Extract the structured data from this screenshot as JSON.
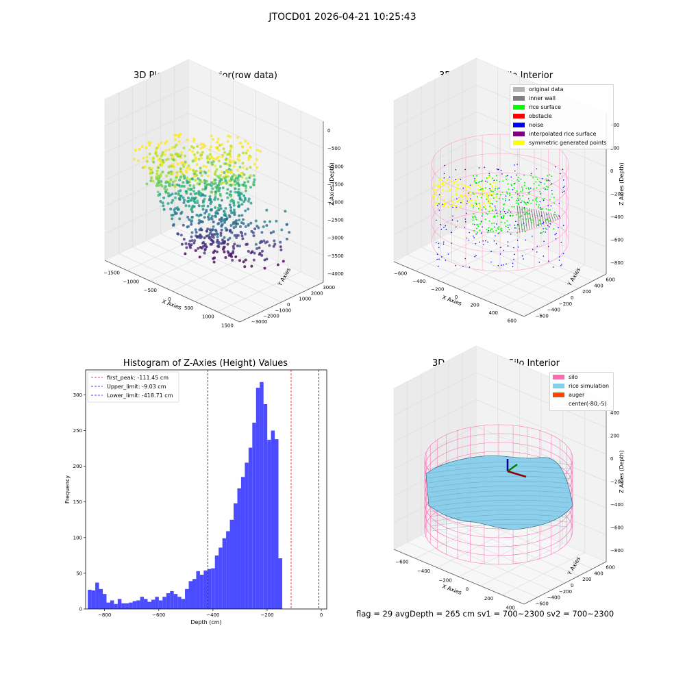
{
  "figure": {
    "suptitle": "JTOCD01 2026-04-21 10:25:43",
    "footer": "flag = 29  avgDepth = 265 cm  sv1 = 700~2300  sv2 = 700~2300"
  },
  "panel1": {
    "title": "3D Plot of Silo Interior(row data)",
    "xlabel": "X Axies",
    "ylabel": "Y Axies",
    "zlabel": "Z Axies (Depth)",
    "xticks": [
      "−1500",
      "−1000",
      "−500",
      "0",
      "500",
      "1000",
      "1500"
    ],
    "yticks": [
      "−3000",
      "−2000",
      "−1000",
      "0",
      "1000",
      "2000",
      "3000"
    ],
    "zticks": [
      "0",
      "−500",
      "−1000",
      "−1500",
      "−2000",
      "−2500",
      "−3000",
      "−3500",
      "−4000"
    ]
  },
  "panel2": {
    "title": "3D classify of Silo Interior",
    "xlabel": "X Axies",
    "ylabel": "Y Axies",
    "zlabel": "Z Axies (Depth)",
    "xticks": [
      "−600",
      "−400",
      "−200",
      "0",
      "200",
      "400",
      "600"
    ],
    "yticks": [
      "−600",
      "−400",
      "−200",
      "0",
      "200",
      "400",
      "600"
    ],
    "zticks": [
      "400",
      "200",
      "0",
      "−200",
      "−400",
      "−600",
      "−800"
    ],
    "legend": [
      {
        "label": "original data",
        "color": "#b3b3b3"
      },
      {
        "label": "inner wall",
        "color": "#808080"
      },
      {
        "label": "rice surface",
        "color": "#00ff00"
      },
      {
        "label": "obstacle",
        "color": "#ff0000"
      },
      {
        "label": "noise",
        "color": "#0000ff"
      },
      {
        "label": "interpolated rice surface",
        "color": "#800080"
      },
      {
        "label": "symmetric generated points",
        "color": "#ffff00"
      }
    ]
  },
  "panel4": {
    "title": "3D simulation of Silo Interior",
    "xlabel": "X Axies",
    "ylabel": "Y Axies",
    "zlabel": "Z Axies (Depth)",
    "xticks": [
      "−600",
      "−400",
      "−200",
      "0",
      "200",
      "400"
    ],
    "yticks": [
      "−600",
      "−400",
      "−200",
      "0",
      "200",
      "400",
      "600"
    ],
    "zticks": [
      "400",
      "200",
      "0",
      "−200",
      "−400",
      "−600",
      "−800"
    ],
    "legend": [
      {
        "label": "silo",
        "color": "#ff69b4"
      },
      {
        "label": "rice simulation",
        "color": "#87ceeb"
      },
      {
        "label": "auger",
        "color": "#ff4500"
      },
      {
        "label": "center(-80,-5)",
        "color": ""
      }
    ]
  },
  "chart_data": [
    {
      "type": "histogram",
      "title": "Histogram of Z-Axies (Height) Values",
      "xlabel": "Depth (cm)",
      "ylabel": "Frequency",
      "xlim": [
        -870,
        20
      ],
      "ylim": [
        0,
        335
      ],
      "bar_color": "#4b4bff",
      "bin_edges_start": -862,
      "bin_width": 13.8,
      "values": [
        27,
        26,
        37,
        28,
        21,
        9,
        12,
        7,
        14,
        8,
        8,
        9,
        11,
        12,
        17,
        14,
        10,
        13,
        17,
        12,
        17,
        22,
        25,
        21,
        17,
        14,
        28,
        39,
        42,
        53,
        48,
        54,
        56,
        57,
        75,
        86,
        99,
        109,
        125,
        148,
        169,
        185,
        205,
        226,
        261,
        310,
        318,
        287,
        237,
        250,
        238,
        71
      ],
      "xticks": [
        -800,
        -600,
        -400,
        -200,
        0
      ],
      "xtick_labels": [
        "−800",
        "−600",
        "−400",
        "−200",
        "0"
      ],
      "yticks": [
        0,
        50,
        100,
        150,
        200,
        250,
        300
      ],
      "vlines": [
        {
          "label": "first_peak: -111.45 cm",
          "x": -111.45,
          "color": "#ff0000"
        },
        {
          "label": "Upper_limit: -9.03 cm",
          "x": -9.03,
          "color": "#0000ff"
        },
        {
          "label": "Lower_limit: -418.71 cm",
          "x": -418.71,
          "color": "#0000ff"
        }
      ]
    }
  ]
}
